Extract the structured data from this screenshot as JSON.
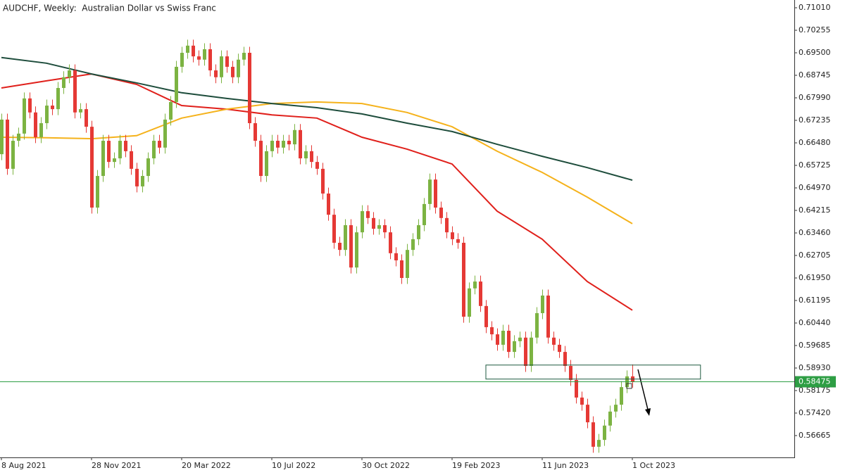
{
  "chart_data": {
    "type": "candlestick",
    "title": "AUDCHF, Weekly:  Australian Dollar vs Swiss Franc",
    "up_color": "#7cb342",
    "down_color": "#e53935",
    "open": [
      0.661,
      0.6726,
      0.6561,
      0.6655,
      0.6679,
      0.6797,
      0.675,
      0.6667,
      0.6714,
      0.6773,
      0.6761,
      0.6832,
      0.6868,
      0.6891,
      0.675,
      0.6761,
      0.6702,
      0.6431,
      0.6537,
      0.6655,
      0.6584,
      0.6596,
      0.6655,
      0.662,
      0.6561,
      0.6502,
      0.6537,
      0.6596,
      0.6655,
      0.6632,
      0.6726,
      0.6785,
      0.6903,
      0.695,
      0.6974,
      0.6938,
      0.6927,
      0.6962,
      0.6891,
      0.6868,
      0.6938,
      0.6903,
      0.6868,
      0.6927,
      0.695,
      0.6714,
      0.6655,
      0.6537,
      0.662,
      0.6655,
      0.6632,
      0.6655,
      0.6643,
      0.6691,
      0.6596,
      0.662,
      0.6584,
      0.6561,
      0.6478,
      0.6407,
      0.6313,
      0.6289,
      0.6372,
      0.623,
      0.6348,
      0.6419,
      0.6396,
      0.636,
      0.6372,
      0.6348,
      0.6278,
      0.6254,
      0.6195,
      0.6289,
      0.6325,
      0.6372,
      0.6443,
      0.6525,
      0.6431,
      0.6396,
      0.6348,
      0.6325,
      0.6313,
      0.6065,
      0.616,
      0.6183,
      0.6101,
      0.603,
      0.6006,
      0.5971,
      0.6018,
      0.5947,
      0.5983,
      0.5995,
      0.59,
      0.5995,
      0.6077,
      0.6136,
      0.5995,
      0.5971,
      0.5947,
      0.59,
      0.5853,
      0.5794,
      0.577,
      0.5711,
      0.5629,
      0.5652,
      0.57,
      0.5747,
      0.577,
      0.5829,
      0.5865
    ],
    "high": [
      0.6746,
      0.6746,
      0.6675,
      0.6699,
      0.6817,
      0.6817,
      0.677,
      0.6734,
      0.6793,
      0.6793,
      0.6852,
      0.6888,
      0.6911,
      0.6911,
      0.6781,
      0.6781,
      0.6722,
      0.6557,
      0.6675,
      0.6675,
      0.6616,
      0.6675,
      0.6675,
      0.664,
      0.6581,
      0.6557,
      0.6616,
      0.6675,
      0.6675,
      0.6746,
      0.6805,
      0.6923,
      0.697,
      0.6994,
      0.6994,
      0.6958,
      0.6982,
      0.6982,
      0.6911,
      0.6958,
      0.6958,
      0.6923,
      0.6947,
      0.697,
      0.697,
      0.6734,
      0.6675,
      0.664,
      0.6675,
      0.6675,
      0.6675,
      0.6675,
      0.6711,
      0.6711,
      0.664,
      0.664,
      0.6604,
      0.6581,
      0.6498,
      0.6427,
      0.6333,
      0.6392,
      0.6392,
      0.6368,
      0.6439,
      0.6439,
      0.6416,
      0.6392,
      0.6392,
      0.6368,
      0.6298,
      0.6274,
      0.6309,
      0.6345,
      0.6392,
      0.6463,
      0.6545,
      0.6545,
      0.6451,
      0.6416,
      0.6368,
      0.6345,
      0.6333,
      0.618,
      0.6203,
      0.6203,
      0.6121,
      0.605,
      0.6026,
      0.6038,
      0.6038,
      0.6003,
      0.6015,
      0.6015,
      0.6015,
      0.6097,
      0.6156,
      0.6156,
      0.6015,
      0.5991,
      0.5967,
      0.592,
      0.5873,
      0.5814,
      0.579,
      0.5731,
      0.5672,
      0.572,
      0.5767,
      0.579,
      0.5849,
      0.5885,
      0.5905
    ],
    "low": [
      0.659,
      0.6541,
      0.6541,
      0.6635,
      0.6659,
      0.673,
      0.6647,
      0.6647,
      0.6694,
      0.6741,
      0.6741,
      0.6812,
      0.6848,
      0.673,
      0.673,
      0.6682,
      0.6411,
      0.6411,
      0.6517,
      0.6564,
      0.6564,
      0.6576,
      0.66,
      0.6541,
      0.6482,
      0.6482,
      0.6517,
      0.6576,
      0.6612,
      0.6612,
      0.6706,
      0.6765,
      0.6883,
      0.693,
      0.6918,
      0.6907,
      0.6907,
      0.6871,
      0.6848,
      0.6848,
      0.6883,
      0.6848,
      0.6848,
      0.6907,
      0.6694,
      0.6635,
      0.6517,
      0.6517,
      0.66,
      0.6612,
      0.6612,
      0.6623,
      0.6623,
      0.6576,
      0.6576,
      0.6564,
      0.6541,
      0.6458,
      0.6387,
      0.6293,
      0.6269,
      0.6269,
      0.621,
      0.621,
      0.6328,
      0.6376,
      0.634,
      0.634,
      0.6328,
      0.6258,
      0.6234,
      0.6175,
      0.6175,
      0.6269,
      0.6305,
      0.6352,
      0.6423,
      0.6411,
      0.6376,
      0.6328,
      0.6305,
      0.6293,
      0.6045,
      0.6045,
      0.614,
      0.6081,
      0.601,
      0.5986,
      0.5951,
      0.5951,
      0.5927,
      0.5927,
      0.5963,
      0.588,
      0.588,
      0.5975,
      0.6057,
      0.5975,
      0.5951,
      0.5927,
      0.588,
      0.5833,
      0.5774,
      0.575,
      0.5691,
      0.5609,
      0.5609,
      0.5632,
      0.568,
      0.5727,
      0.575,
      0.5809,
      0.5827
    ],
    "close": [
      0.6726,
      0.6561,
      0.6655,
      0.6679,
      0.6797,
      0.675,
      0.6667,
      0.6714,
      0.6773,
      0.6761,
      0.6832,
      0.6868,
      0.6891,
      0.675,
      0.6761,
      0.6702,
      0.6431,
      0.6537,
      0.6655,
      0.6584,
      0.6596,
      0.6655,
      0.662,
      0.6561,
      0.6502,
      0.6537,
      0.6596,
      0.6655,
      0.6632,
      0.6726,
      0.6785,
      0.6903,
      0.695,
      0.6974,
      0.6938,
      0.6927,
      0.6962,
      0.6891,
      0.6868,
      0.6938,
      0.6903,
      0.6868,
      0.6927,
      0.695,
      0.6714,
      0.6655,
      0.6537,
      0.662,
      0.6655,
      0.6632,
      0.6655,
      0.6643,
      0.6691,
      0.6596,
      0.662,
      0.6584,
      0.6561,
      0.6478,
      0.6407,
      0.6313,
      0.6289,
      0.6372,
      0.623,
      0.6348,
      0.6419,
      0.6396,
      0.636,
      0.6372,
      0.6348,
      0.6278,
      0.6254,
      0.6195,
      0.6289,
      0.6325,
      0.6372,
      0.6443,
      0.6525,
      0.6431,
      0.6396,
      0.6348,
      0.6325,
      0.6313,
      0.6065,
      0.616,
      0.6183,
      0.6101,
      0.603,
      0.6006,
      0.5971,
      0.6018,
      0.5947,
      0.5983,
      0.5995,
      0.59,
      0.5995,
      0.6077,
      0.6136,
      0.5995,
      0.5971,
      0.5947,
      0.59,
      0.5853,
      0.5794,
      0.577,
      0.5711,
      0.5629,
      0.5652,
      0.57,
      0.5747,
      0.577,
      0.5829,
      0.5865,
      0.58475
    ],
    "lines": [
      {
        "color": "#e0201b",
        "x": [
          0,
          8,
          16,
          24,
          32,
          40,
          48,
          56,
          64,
          72,
          80,
          88,
          96,
          104,
          112
        ],
        "values": [
          0.6832,
          0.6856,
          0.6879,
          0.6844,
          0.6773,
          0.6761,
          0.6742,
          0.6731,
          0.6667,
          0.6627,
          0.6577,
          0.6419,
          0.6325,
          0.6183,
          0.6087
        ]
      },
      {
        "color": "#f5b21b",
        "x": [
          0,
          8,
          16,
          24,
          32,
          40,
          48,
          56,
          64,
          72,
          80,
          88,
          96,
          104,
          112
        ],
        "values": [
          0.6667,
          0.6665,
          0.6662,
          0.6672,
          0.6731,
          0.6761,
          0.678,
          0.6785,
          0.678,
          0.675,
          0.6702,
          0.662,
          0.6549,
          0.6466,
          0.6377
        ]
      },
      {
        "color": "#1e4d3c",
        "x": [
          0,
          8,
          16,
          24,
          32,
          40,
          48,
          56,
          64,
          72,
          80,
          88,
          96,
          104,
          112
        ],
        "values": [
          0.6934,
          0.6915,
          0.6879,
          0.6849,
          0.6816,
          0.6797,
          0.678,
          0.6766,
          0.6745,
          0.6714,
          0.6686,
          0.6643,
          0.6603,
          0.6565,
          0.6523
        ]
      }
    ],
    "last_price_color": "#2e9e44",
    "box": {
      "x": [
        86,
        124.1
      ],
      "y": [
        0.5856,
        0.5903
      ],
      "color": "#1e5a40"
    },
    "xlim": [
      -0.25,
      140.75
    ],
    "xticks": [
      {
        "value": 0,
        "label": "8 Aug 2021"
      },
      {
        "value": 16,
        "label": "28 Nov 2021"
      },
      {
        "value": 32,
        "label": "20 Mar 2022"
      },
      {
        "value": 48,
        "label": "10 Jul 2022"
      },
      {
        "value": 64,
        "label": "30 Oct 2022"
      },
      {
        "value": 80,
        "label": "19 Feb 2023"
      },
      {
        "value": 96,
        "label": "11 Jun 2023"
      },
      {
        "value": 112,
        "label": "1 Oct 2023"
      }
    ],
    "ylim": [
      0.55933,
      0.7127
    ],
    "yticks": [
      {
        "value": 0.7101,
        "label": "0.71010"
      },
      0.70255,
      {
        "value": 0.695,
        "label": "0.69500"
      },
      0.68745,
      {
        "value": 0.6799,
        "label": "0.67990"
      },
      0.67235,
      {
        "value": 0.6648,
        "label": "0.66480"
      },
      0.65725,
      {
        "value": 0.6497,
        "label": "0.64970"
      },
      0.64215,
      {
        "value": 0.6346,
        "label": "0.63460"
      },
      0.62705,
      {
        "value": 0.6195,
        "label": "0.61950"
      },
      0.61195,
      {
        "value": 0.6044,
        "label": "0.60440"
      },
      0.59685,
      {
        "value": 0.5893,
        "label": "0.58930"
      },
      0.58175,
      {
        "value": 0.5742,
        "label": "0.57420"
      },
      0.56665
    ]
  }
}
